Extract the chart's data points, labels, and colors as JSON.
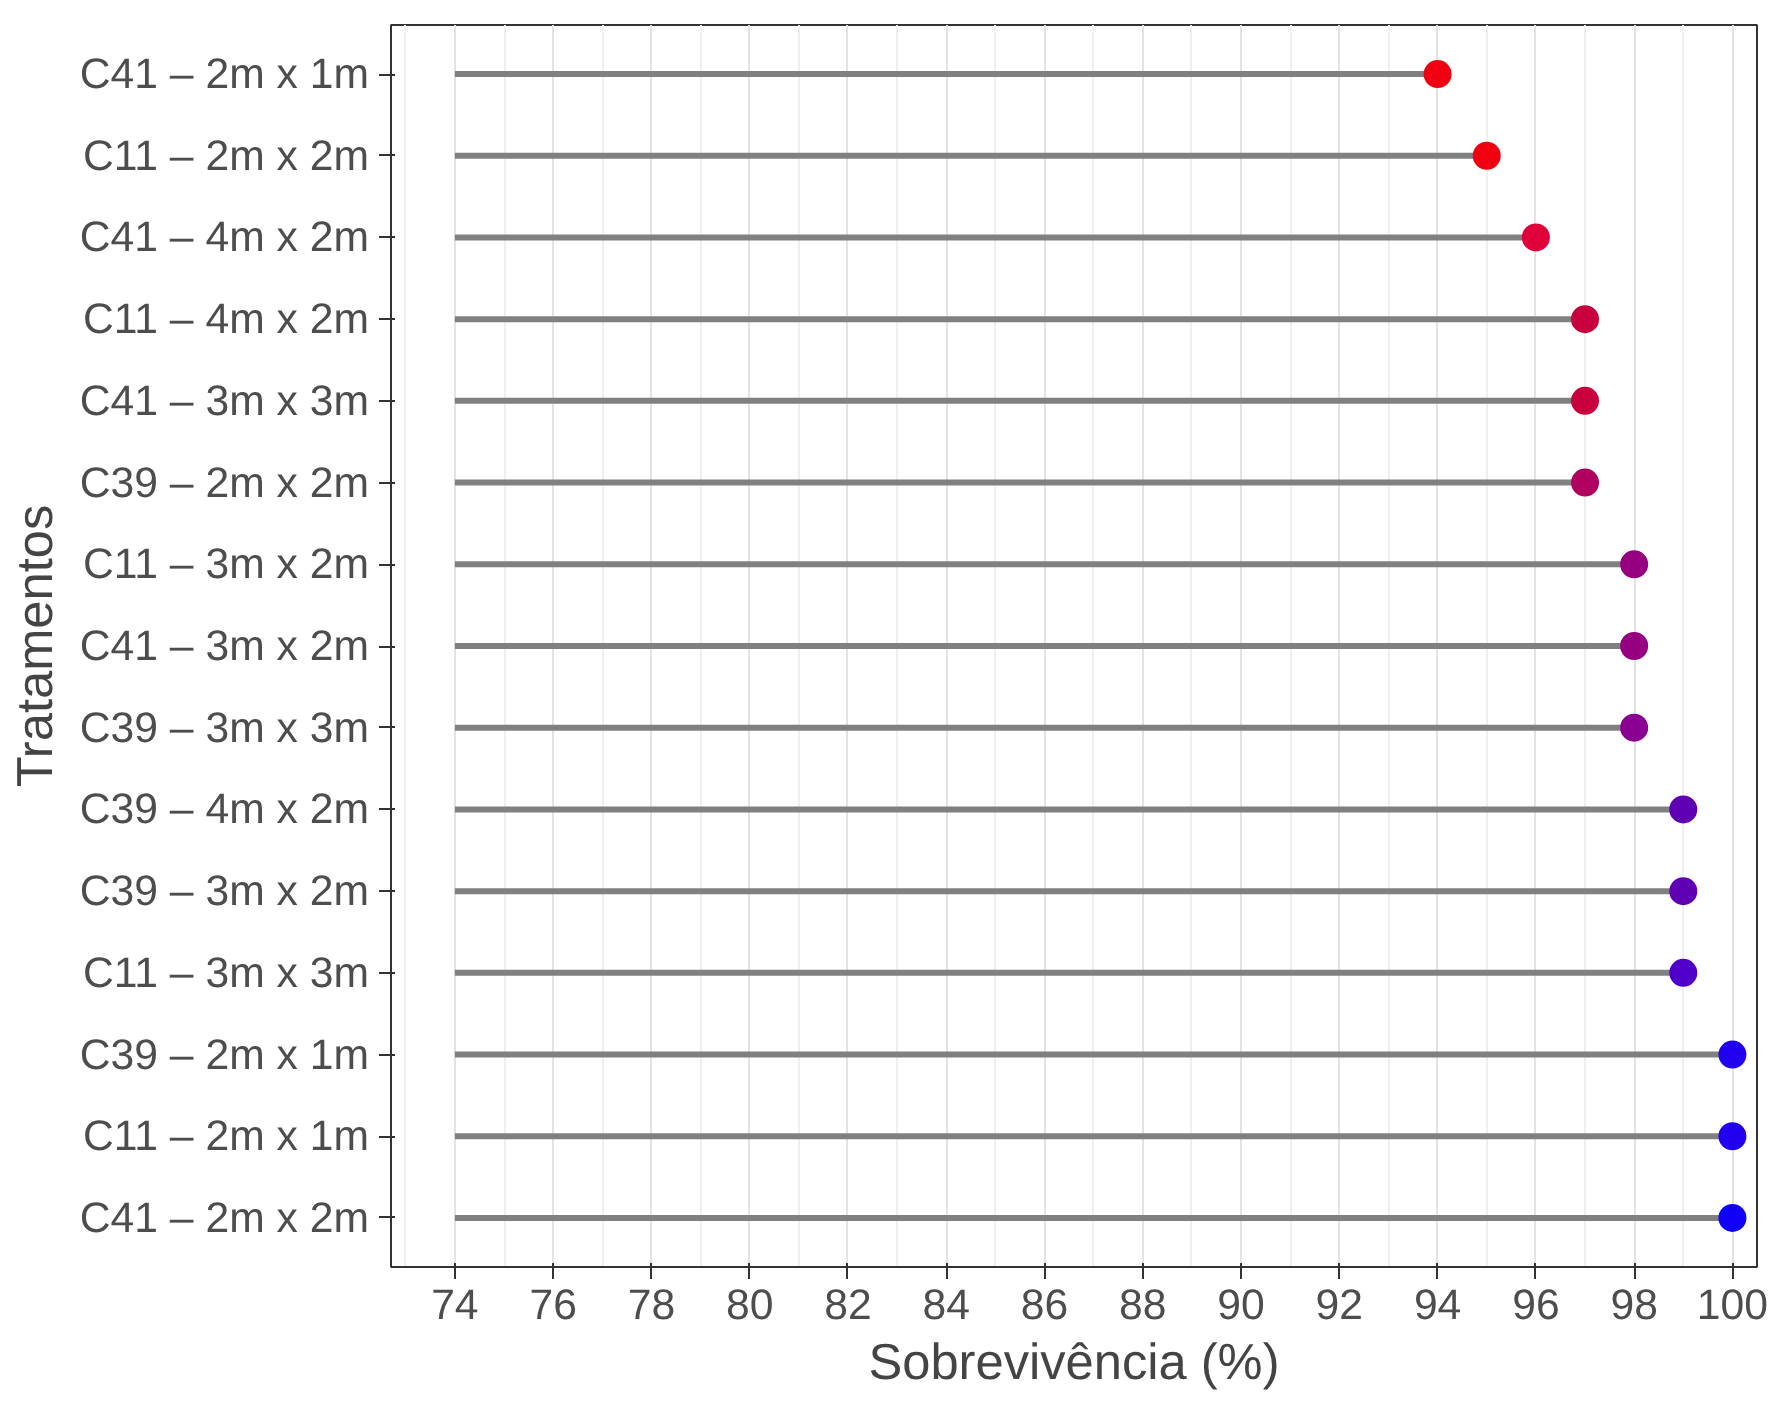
{
  "chart_data": {
    "type": "lollipop",
    "orientation": "horizontal",
    "xlabel": "Sobrevivência (%)",
    "ylabel": "Tratamentos",
    "categories": [
      "C41 – 2m x 1m",
      "C11 – 2m x 2m",
      "C41 – 4m x 2m",
      "C11 – 4m x 2m",
      "C41 – 3m x 3m",
      "C39 – 2m x 2m",
      "C11 – 3m x 2m",
      "C41 – 3m x 2m",
      "C39 – 3m x 3m",
      "C39 – 4m x 2m",
      "C39 – 3m x 2m",
      "C11 – 3m x 3m",
      "C39 – 2m x 1m",
      "C11 – 2m x 1m",
      "C41 – 2m x 2m"
    ],
    "values": [
      94,
      95,
      96,
      97,
      97,
      97,
      98,
      98,
      98,
      99,
      99,
      99,
      100,
      100,
      100
    ],
    "colors": [
      "#f00010",
      "#f00010",
      "#e0003a",
      "#c8003e",
      "#c8003e",
      "#b00060",
      "#960080",
      "#960080",
      "#8a0090",
      "#6000b4",
      "#6000b4",
      "#5000c8",
      "#2000ee",
      "#2000ee",
      "#1000f8"
    ],
    "xlim": [
      72.7,
      100.5
    ],
    "xticks": [
      74,
      76,
      78,
      80,
      82,
      84,
      86,
      88,
      90,
      92,
      94,
      96,
      98,
      100
    ],
    "grid": "x",
    "marker": "circle"
  }
}
